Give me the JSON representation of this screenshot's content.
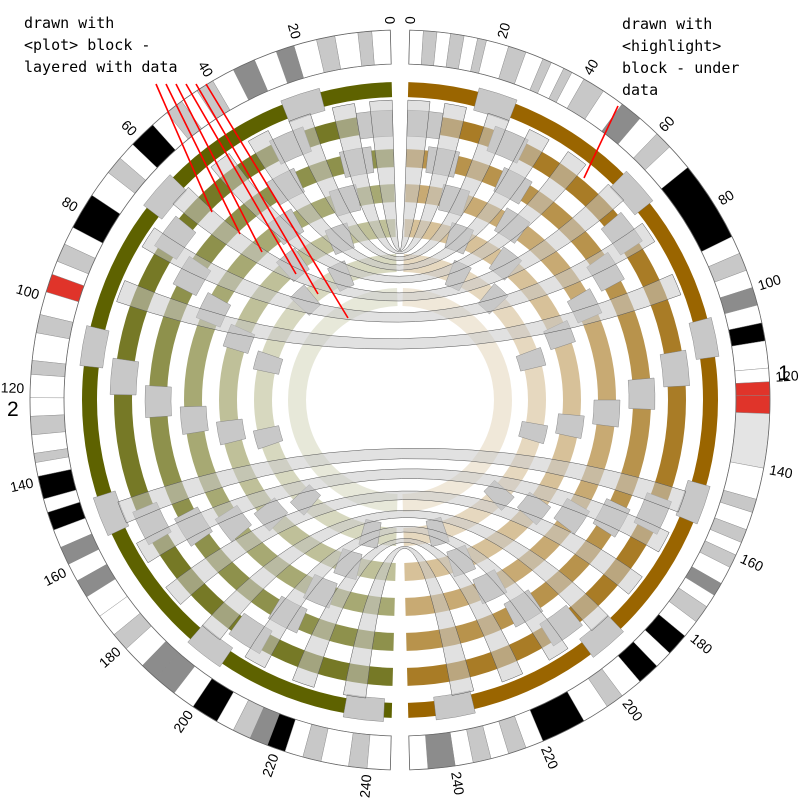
{
  "annotations": {
    "left": "drawn with\n<plot> block -\nlayered with data",
    "right": "drawn with\n<highlight>\nblock - under\ndata"
  },
  "chromosomes": [
    {
      "name": "1",
      "length": 250,
      "ticks": [
        "0",
        "20",
        "40",
        "60",
        "80",
        "100",
        "120",
        "140",
        "160",
        "180",
        "200",
        "220",
        "240"
      ],
      "track_color": "#9a6500",
      "bands": [
        [
          0,
          3,
          "w"
        ],
        [
          3,
          6,
          "g"
        ],
        [
          6,
          9,
          "w"
        ],
        [
          9,
          12,
          "g"
        ],
        [
          12,
          15,
          "w"
        ],
        [
          15,
          17,
          "g"
        ],
        [
          17,
          22,
          "w"
        ],
        [
          22,
          26,
          "g"
        ],
        [
          26,
          30,
          "w"
        ],
        [
          30,
          32,
          "g"
        ],
        [
          32,
          35,
          "w"
        ],
        [
          35,
          37,
          "g"
        ],
        [
          37,
          40,
          "w"
        ],
        [
          40,
          45,
          "g"
        ],
        [
          45,
          50,
          "w"
        ],
        [
          50,
          55,
          "d"
        ],
        [
          55,
          60,
          "w"
        ],
        [
          60,
          64,
          "g"
        ],
        [
          64,
          70,
          "w"
        ],
        [
          70,
          88,
          "k"
        ],
        [
          88,
          92,
          "w"
        ],
        [
          92,
          96,
          "g"
        ],
        [
          96,
          100,
          "w"
        ],
        [
          100,
          104,
          "d"
        ],
        [
          104,
          108,
          "w"
        ],
        [
          108,
          112,
          "k"
        ],
        [
          112,
          118,
          "w"
        ],
        [
          118,
          121,
          "w"
        ],
        [
          121,
          124,
          "r"
        ],
        [
          124,
          128,
          "r"
        ],
        [
          128,
          140,
          "l"
        ],
        [
          140,
          147,
          "w"
        ],
        [
          147,
          150,
          "g"
        ],
        [
          150,
          154,
          "w"
        ],
        [
          154,
          157,
          "g"
        ],
        [
          157,
          160,
          "w"
        ],
        [
          160,
          163,
          "g"
        ],
        [
          163,
          167,
          "w"
        ],
        [
          167,
          170,
          "d"
        ],
        [
          170,
          173,
          "w"
        ],
        [
          173,
          177,
          "g"
        ],
        [
          177,
          181,
          "w"
        ],
        [
          181,
          186,
          "k"
        ],
        [
          186,
          190,
          "w"
        ],
        [
          190,
          195,
          "k"
        ],
        [
          195,
          200,
          "w"
        ],
        [
          200,
          204,
          "g"
        ],
        [
          204,
          210,
          "w"
        ],
        [
          210,
          220,
          "k"
        ],
        [
          220,
          224,
          "w"
        ],
        [
          224,
          228,
          "g"
        ],
        [
          228,
          232,
          "w"
        ],
        [
          232,
          236,
          "g"
        ],
        [
          236,
          240,
          "w"
        ],
        [
          240,
          246,
          "d"
        ],
        [
          246,
          250,
          "w"
        ]
      ]
    },
    {
      "name": "2",
      "length": 245,
      "ticks": [
        "0",
        "20",
        "40",
        "60",
        "80",
        "100",
        "120",
        "140",
        "160",
        "180",
        "200",
        "220",
        "240"
      ],
      "track_color": "#5e6200",
      "bands": [
        [
          0,
          4,
          "w"
        ],
        [
          4,
          7,
          "g"
        ],
        [
          7,
          12,
          "w"
        ],
        [
          12,
          16,
          "g"
        ],
        [
          16,
          21,
          "w"
        ],
        [
          21,
          25,
          "d"
        ],
        [
          25,
          30,
          "w"
        ],
        [
          30,
          35,
          "d"
        ],
        [
          35,
          40,
          "w"
        ],
        [
          40,
          44,
          "g"
        ],
        [
          44,
          48,
          "w"
        ],
        [
          48,
          52,
          "g"
        ],
        [
          52,
          56,
          "w"
        ],
        [
          56,
          62,
          "k"
        ],
        [
          62,
          66,
          "w"
        ],
        [
          66,
          70,
          "g"
        ],
        [
          70,
          76,
          "w"
        ],
        [
          76,
          84,
          "k"
        ],
        [
          84,
          88,
          "w"
        ],
        [
          88,
          92,
          "g"
        ],
        [
          92,
          95,
          "w"
        ],
        [
          95,
          99,
          "r"
        ],
        [
          99,
          104,
          "w"
        ],
        [
          104,
          108,
          "g"
        ],
        [
          108,
          114,
          "w"
        ],
        [
          114,
          117,
          "g"
        ],
        [
          117,
          122,
          "w"
        ],
        [
          122,
          126,
          "w"
        ],
        [
          126,
          130,
          "g"
        ],
        [
          130,
          134,
          "w"
        ],
        [
          134,
          136,
          "g"
        ],
        [
          136,
          139,
          "w"
        ],
        [
          139,
          144,
          "k"
        ],
        [
          144,
          147,
          "w"
        ],
        [
          147,
          151,
          "k"
        ],
        [
          151,
          155,
          "w"
        ],
        [
          155,
          159,
          "d"
        ],
        [
          159,
          163,
          "w"
        ],
        [
          163,
          167,
          "d"
        ],
        [
          167,
          172,
          "w"
        ],
        [
          172,
          177,
          "w"
        ],
        [
          177,
          181,
          "g"
        ],
        [
          181,
          186,
          "w"
        ],
        [
          186,
          190,
          "d"
        ],
        [
          190,
          195,
          "d"
        ],
        [
          195,
          200,
          "w"
        ],
        [
          200,
          206,
          "k"
        ],
        [
          206,
          210,
          "w"
        ],
        [
          210,
          214,
          "g"
        ],
        [
          214,
          218,
          "d"
        ],
        [
          218,
          222,
          "k"
        ],
        [
          222,
          226,
          "w"
        ],
        [
          226,
          230,
          "g"
        ],
        [
          230,
          236,
          "w"
        ],
        [
          236,
          240,
          "g"
        ],
        [
          240,
          245,
          "w"
        ]
      ]
    }
  ],
  "band_colors": {
    "w": "#ffffff",
    "g": "#c8c8c8",
    "d": "#8c8c8c",
    "k": "#000000",
    "r": "#e0342a",
    "l": "#e4e4e4"
  },
  "highlight_color": "#c8c8c8",
  "pointer_color": "#ff0000"
}
